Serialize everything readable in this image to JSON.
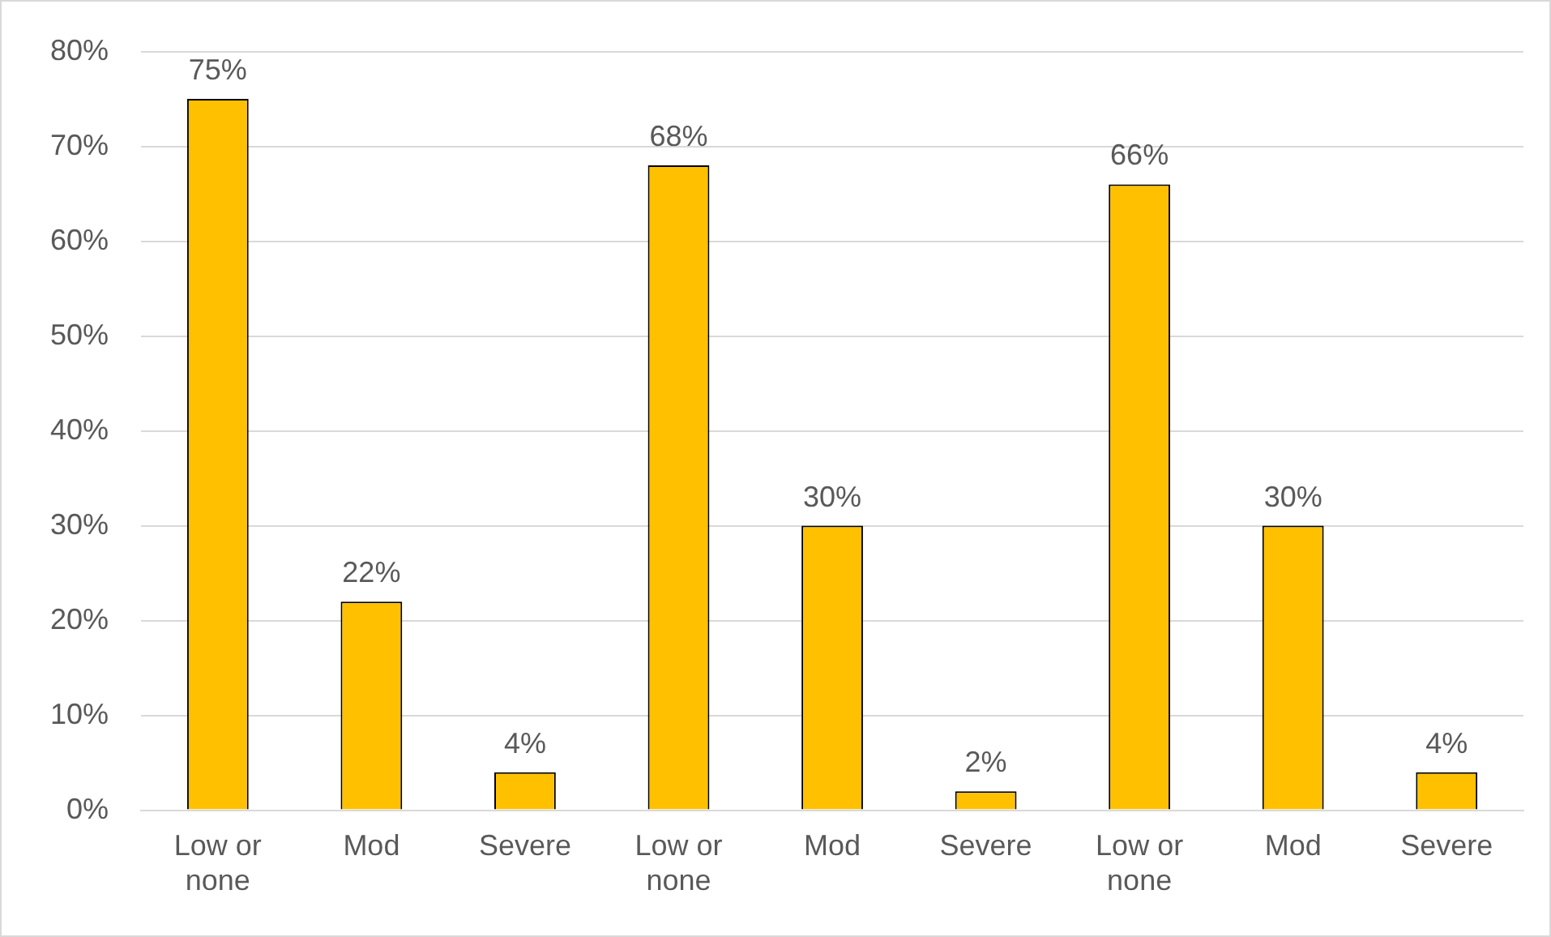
{
  "chart_data": {
    "type": "bar",
    "categories": [
      "Low or none",
      "Mod",
      "Severe",
      "Low or none",
      "Mod",
      "Severe",
      "Low or none",
      "Mod",
      "Severe"
    ],
    "values": [
      75,
      22,
      4,
      68,
      30,
      2,
      66,
      30,
      4
    ],
    "value_labels": [
      "75%",
      "22%",
      "4%",
      "68%",
      "30%",
      "2%",
      "66%",
      "30%",
      "4%"
    ],
    "color": "#ffc000",
    "ylim": [
      0,
      80
    ],
    "yticks": [
      {
        "value": 0,
        "label": "0%"
      },
      {
        "value": 10,
        "label": "10%"
      },
      {
        "value": 20,
        "label": "20%"
      },
      {
        "value": 30,
        "label": "30%"
      },
      {
        "value": 40,
        "label": "40%"
      },
      {
        "value": 50,
        "label": "50%"
      },
      {
        "value": 60,
        "label": "60%"
      },
      {
        "value": 70,
        "label": "70%"
      },
      {
        "value": 80,
        "label": "80%"
      }
    ],
    "grid": "y",
    "legend": false
  }
}
